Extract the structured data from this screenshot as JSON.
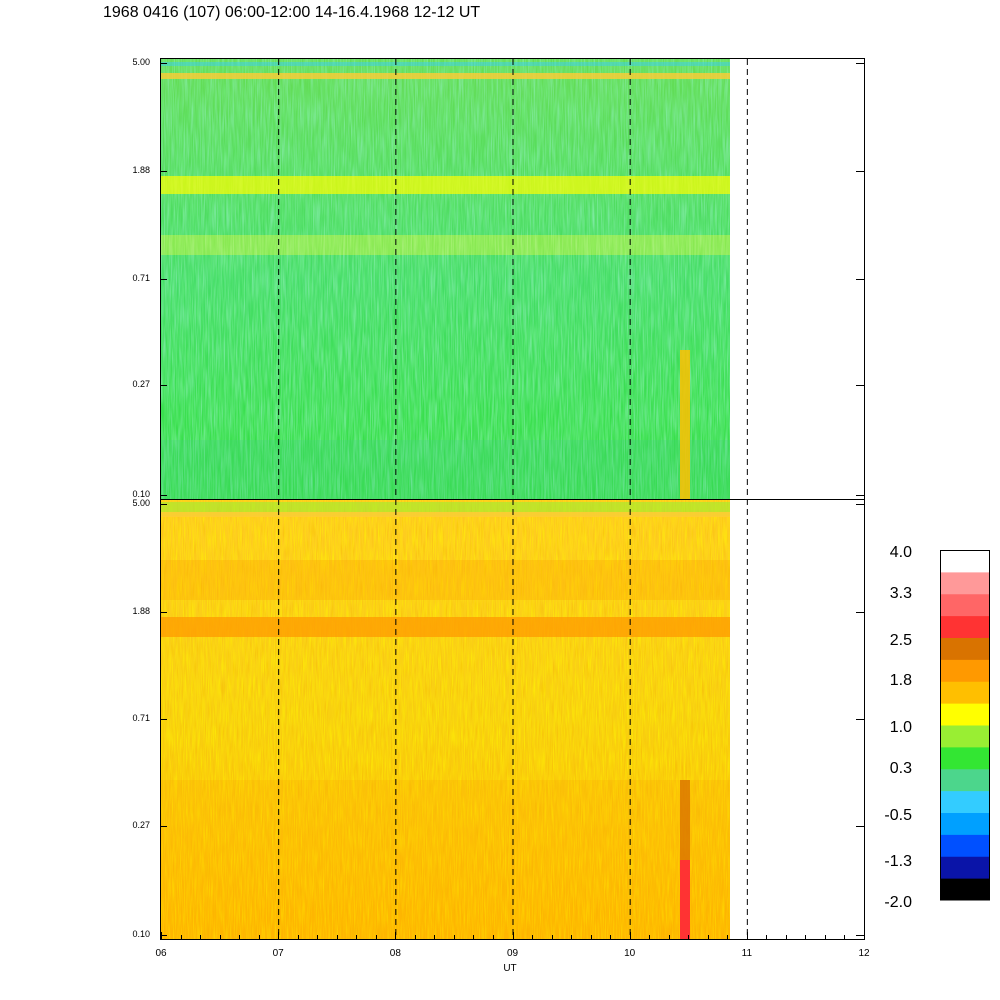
{
  "title": "1968 0416 (107) 06:00-12:00 14-16.4.1968  12-12 UT",
  "chart_data": {
    "type": "heatmap",
    "title": "1968 0416 (107) 06:00-12:00 14-16.4.1968  12-12 UT",
    "xlabel": "UT",
    "x_ticks": [
      "06",
      "07",
      "08",
      "09",
      "10",
      "11",
      "12"
    ],
    "x_range": [
      6,
      12
    ],
    "data_coverage_x": [
      6,
      10.85
    ],
    "panels": [
      {
        "name": "upper",
        "y_ticks": [
          "5.00",
          "1.88",
          "0.71",
          "0.27",
          "0.10"
        ],
        "y_scale": "log",
        "y_range": [
          0.1,
          5.0
        ],
        "dominant_level": 0.3,
        "enhanced_band_y": 2.0,
        "enhanced_band_level": 1.0
      },
      {
        "name": "lower",
        "y_ticks": [
          "5.00",
          "1.88",
          "0.71",
          "0.27",
          "0.10"
        ],
        "y_scale": "log",
        "y_range": [
          0.1,
          5.0
        ],
        "dominant_level": 1.8,
        "enhanced_band_y": 1.6,
        "enhanced_band_level": 2.2
      }
    ],
    "colorbar": {
      "labels": [
        "4.0",
        "3.3",
        "2.5",
        "1.8",
        "1.0",
        "0.3",
        "-0.5",
        "-1.3",
        "-2.0"
      ],
      "range": [
        -2.0,
        4.0
      ],
      "colors": [
        "#000000",
        "#0a14a8",
        "#0050ff",
        "#00a0ff",
        "#33ccff",
        "#4cd68c",
        "#33e633",
        "#99ee33",
        "#ffff00",
        "#ffbf00",
        "#ff9900",
        "#d97300",
        "#ff3333",
        "#ff6666",
        "#ff9999",
        "#ffffff"
      ]
    },
    "dashed_hour_markers": [
      "07",
      "08",
      "09",
      "10",
      "11"
    ]
  }
}
